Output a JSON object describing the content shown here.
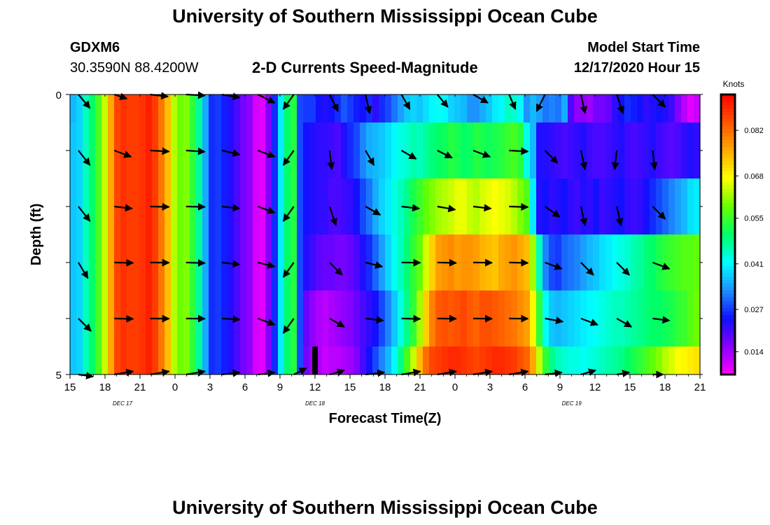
{
  "header": {
    "title": "University of Southern Mississippi Ocean Cube",
    "station": "GDXM6",
    "location": "30.3590N 88.4200W",
    "plot_title": "2-D Currents Speed-Magnitude",
    "model_start_label": "Model Start Time",
    "model_start_value": "12/17/2020 Hour 15"
  },
  "footer": {
    "title": "University of Southern Mississippi Ocean Cube"
  },
  "chart_data": {
    "type": "heatmap",
    "title": "2-D Currents Speed-Magnitude",
    "xlabel": "Forecast Time(Z)",
    "ylabel": "Depth (ft)",
    "x_ticks": [
      "15",
      "18",
      "21",
      "0",
      "3",
      "6",
      "9",
      "12",
      "15",
      "18",
      "21",
      "0",
      "3",
      "6",
      "9",
      "12",
      "15",
      "18",
      "21"
    ],
    "x_hours_range": [
      0,
      54
    ],
    "date_labels": [
      {
        "text": "DEC 17",
        "hour": 4.5
      },
      {
        "text": "DEC 18",
        "hour": 21
      },
      {
        "text": "DEC 19",
        "hour": 43
      }
    ],
    "y_ticks": [
      "0",
      "5"
    ],
    "ylim": [
      0,
      5
    ],
    "colorbar": {
      "title": "Knots",
      "ticks": [
        "0.082",
        "0.068",
        "0.055",
        "0.041",
        "0.027",
        "0.014"
      ],
      "range": [
        0.007,
        0.093
      ],
      "colors": [
        "#ff00ff",
        "#8800ff",
        "#1010ff",
        "#1e90ff",
        "#00ffff",
        "#00ff66",
        "#66ff00",
        "#ffff00",
        "#ffaa00",
        "#ff5500",
        "#ff0000"
      ]
    },
    "layers": [
      [
        0.036,
        0.038,
        0.045,
        0.05,
        0.056,
        0.064,
        0.076,
        0.086,
        0.088,
        0.087,
        0.087,
        0.088,
        0.09,
        0.087,
        0.081,
        0.074,
        0.063,
        0.059,
        0.06,
        0.054,
        0.047,
        0.035,
        0.026,
        0.027,
        0.025,
        0.023,
        0.02,
        0.017,
        0.015,
        0.01,
        0.009,
        0.016,
        0.026,
        0.04,
        0.05,
        0.053,
        0.028,
        0.027,
        0.027,
        0.024,
        0.023,
        0.024,
        0.026,
        0.029,
        0.027,
        0.025,
        0.024,
        0.026,
        0.022,
        0.026,
        0.028,
        0.031,
        0.034,
        0.037,
        0.038,
        0.037,
        0.039,
        0.041,
        0.042,
        0.041,
        0.038,
        0.037,
        0.036,
        0.033,
        0.033,
        0.035,
        0.037,
        0.04,
        0.041,
        0.045,
        0.044,
        0.041,
        0.033,
        0.036,
        0.034,
        0.031,
        0.032,
        0.031,
        0.035,
        0.02,
        0.015,
        0.015,
        0.014,
        0.017,
        0.017,
        0.018,
        0.022,
        0.024,
        0.026,
        0.025,
        0.024,
        0.022,
        0.023,
        0.024,
        0.023,
        0.021,
        0.016,
        0.012,
        0.009,
        0.011
      ],
      [
        0.037,
        0.038,
        0.045,
        0.05,
        0.056,
        0.064,
        0.076,
        0.086,
        0.088,
        0.087,
        0.087,
        0.088,
        0.09,
        0.087,
        0.081,
        0.074,
        0.063,
        0.059,
        0.06,
        0.054,
        0.047,
        0.035,
        0.026,
        0.027,
        0.025,
        0.023,
        0.02,
        0.017,
        0.015,
        0.01,
        0.009,
        0.016,
        0.026,
        0.04,
        0.05,
        0.053,
        0.028,
        0.024,
        0.023,
        0.022,
        0.022,
        0.021,
        0.02,
        0.023,
        0.026,
        0.028,
        0.032,
        0.035,
        0.036,
        0.037,
        0.039,
        0.041,
        0.043,
        0.044,
        0.046,
        0.045,
        0.047,
        0.049,
        0.05,
        0.051,
        0.053,
        0.052,
        0.05,
        0.051,
        0.053,
        0.052,
        0.051,
        0.052,
        0.053,
        0.055,
        0.056,
        0.053,
        0.043,
        0.036,
        0.023,
        0.023,
        0.022,
        0.021,
        0.02,
        0.021,
        0.022,
        0.023,
        0.021,
        0.02,
        0.02,
        0.021,
        0.022,
        0.023,
        0.021,
        0.02,
        0.021,
        0.022,
        0.023,
        0.021,
        0.02,
        0.019,
        0.02,
        0.022,
        0.023,
        0.022
      ],
      [
        0.037,
        0.038,
        0.045,
        0.05,
        0.056,
        0.064,
        0.076,
        0.086,
        0.088,
        0.087,
        0.087,
        0.088,
        0.09,
        0.087,
        0.081,
        0.074,
        0.063,
        0.059,
        0.06,
        0.054,
        0.047,
        0.035,
        0.026,
        0.027,
        0.025,
        0.023,
        0.02,
        0.017,
        0.015,
        0.01,
        0.009,
        0.016,
        0.026,
        0.04,
        0.05,
        0.053,
        0.028,
        0.024,
        0.023,
        0.022,
        0.022,
        0.02,
        0.02,
        0.021,
        0.022,
        0.024,
        0.028,
        0.031,
        0.035,
        0.038,
        0.04,
        0.043,
        0.045,
        0.048,
        0.052,
        0.055,
        0.058,
        0.06,
        0.062,
        0.063,
        0.064,
        0.066,
        0.066,
        0.064,
        0.063,
        0.065,
        0.066,
        0.067,
        0.066,
        0.065,
        0.063,
        0.06,
        0.057,
        0.04,
        0.023,
        0.024,
        0.022,
        0.023,
        0.024,
        0.022,
        0.021,
        0.023,
        0.022,
        0.024,
        0.021,
        0.022,
        0.023,
        0.024,
        0.022,
        0.021,
        0.022,
        0.024,
        0.026,
        0.028,
        0.03,
        0.032,
        0.034,
        0.036,
        0.039,
        0.04
      ],
      [
        0.037,
        0.038,
        0.045,
        0.05,
        0.056,
        0.064,
        0.076,
        0.086,
        0.088,
        0.087,
        0.087,
        0.088,
        0.09,
        0.087,
        0.081,
        0.074,
        0.063,
        0.059,
        0.06,
        0.054,
        0.047,
        0.035,
        0.026,
        0.027,
        0.025,
        0.023,
        0.02,
        0.017,
        0.015,
        0.01,
        0.009,
        0.016,
        0.026,
        0.04,
        0.05,
        0.053,
        0.028,
        0.023,
        0.021,
        0.019,
        0.018,
        0.018,
        0.017,
        0.017,
        0.018,
        0.02,
        0.023,
        0.026,
        0.03,
        0.034,
        0.038,
        0.042,
        0.045,
        0.049,
        0.054,
        0.058,
        0.065,
        0.072,
        0.077,
        0.078,
        0.079,
        0.077,
        0.078,
        0.078,
        0.077,
        0.075,
        0.074,
        0.073,
        0.076,
        0.077,
        0.078,
        0.076,
        0.074,
        0.062,
        0.045,
        0.032,
        0.028,
        0.027,
        0.03,
        0.031,
        0.032,
        0.034,
        0.036,
        0.037,
        0.039,
        0.04,
        0.042,
        0.043,
        0.044,
        0.046,
        0.047,
        0.049,
        0.05,
        0.052,
        0.054,
        0.055,
        0.056,
        0.057,
        0.057,
        0.058
      ],
      [
        0.037,
        0.038,
        0.045,
        0.05,
        0.056,
        0.064,
        0.076,
        0.086,
        0.088,
        0.087,
        0.087,
        0.088,
        0.09,
        0.087,
        0.081,
        0.074,
        0.063,
        0.059,
        0.06,
        0.054,
        0.047,
        0.035,
        0.026,
        0.027,
        0.025,
        0.023,
        0.02,
        0.017,
        0.015,
        0.01,
        0.009,
        0.016,
        0.026,
        0.04,
        0.05,
        0.053,
        0.028,
        0.018,
        0.015,
        0.013,
        0.012,
        0.013,
        0.014,
        0.015,
        0.016,
        0.018,
        0.02,
        0.022,
        0.024,
        0.028,
        0.032,
        0.037,
        0.043,
        0.048,
        0.054,
        0.062,
        0.072,
        0.08,
        0.084,
        0.085,
        0.084,
        0.085,
        0.086,
        0.084,
        0.083,
        0.085,
        0.085,
        0.084,
        0.083,
        0.082,
        0.081,
        0.079,
        0.077,
        0.068,
        0.054,
        0.042,
        0.037,
        0.036,
        0.037,
        0.038,
        0.039,
        0.04,
        0.041,
        0.042,
        0.043,
        0.044,
        0.045,
        0.045,
        0.046,
        0.047,
        0.048,
        0.049,
        0.05,
        0.05,
        0.051,
        0.052,
        0.054,
        0.055,
        0.057,
        0.059
      ],
      [
        0.037,
        0.038,
        0.045,
        0.05,
        0.056,
        0.064,
        0.076,
        0.086,
        0.088,
        0.087,
        0.087,
        0.088,
        0.09,
        0.087,
        0.081,
        0.074,
        0.063,
        0.059,
        0.06,
        0.054,
        0.047,
        0.035,
        0.026,
        0.027,
        0.025,
        0.023,
        0.02,
        0.017,
        0.015,
        0.01,
        0.009,
        0.016,
        0.026,
        0.04,
        0.05,
        0.053,
        0.028,
        0.017,
        0.014,
        0.013,
        0.011,
        0.012,
        0.012,
        0.013,
        0.014,
        0.016,
        0.02,
        0.024,
        0.028,
        0.032,
        0.036,
        0.041,
        0.048,
        0.056,
        0.064,
        0.074,
        0.082,
        0.086,
        0.087,
        0.088,
        0.089,
        0.089,
        0.088,
        0.087,
        0.086,
        0.087,
        0.088,
        0.089,
        0.089,
        0.088,
        0.087,
        0.085,
        0.083,
        0.076,
        0.064,
        0.054,
        0.048,
        0.045,
        0.044,
        0.043,
        0.043,
        0.042,
        0.043,
        0.044,
        0.045,
        0.046,
        0.047,
        0.048,
        0.05,
        0.052,
        0.054,
        0.056,
        0.058,
        0.06,
        0.063,
        0.065,
        0.067,
        0.068,
        0.069,
        0.07
      ]
    ],
    "vectors": [
      [
        [
          0.55,
          0.65
        ],
        [
          0.6,
          0.2
        ],
        [
          0.85,
          0.1
        ],
        [
          0.9,
          0.05
        ],
        [
          0.85,
          0.15
        ],
        [
          0.8,
          0.4
        ],
        [
          -0.5,
          0.7
        ],
        [
          0.4,
          0.8
        ],
        [
          0.2,
          0.9
        ],
        [
          0.4,
          0.7
        ],
        [
          0.5,
          0.6
        ],
        [
          0.7,
          0.4
        ],
        [
          0.3,
          0.7
        ],
        [
          -0.4,
          0.8
        ],
        [
          0.2,
          0.9
        ],
        [
          0.3,
          0.9
        ],
        [
          0.6,
          0.6
        ]
      ],
      [
        [
          0.55,
          0.7
        ],
        [
          0.8,
          0.3
        ],
        [
          0.9,
          0.05
        ],
        [
          0.9,
          0.06
        ],
        [
          0.85,
          0.2
        ],
        [
          0.8,
          0.3
        ],
        [
          -0.5,
          0.7
        ],
        [
          0.1,
          0.9
        ],
        [
          0.4,
          0.7
        ],
        [
          0.7,
          0.4
        ],
        [
          0.7,
          0.35
        ],
        [
          0.8,
          0.3
        ],
        [
          0.9,
          0.05
        ],
        [
          0.6,
          0.6
        ],
        [
          0.2,
          0.9
        ],
        [
          -0.1,
          0.9
        ],
        [
          0.1,
          0.9
        ]
      ],
      [
        [
          0.55,
          0.7
        ],
        [
          0.85,
          0.1
        ],
        [
          0.9,
          0.02
        ],
        [
          0.9,
          0.02
        ],
        [
          0.85,
          0.1
        ],
        [
          0.8,
          0.3
        ],
        [
          -0.5,
          0.7
        ],
        [
          0.3,
          0.9
        ],
        [
          0.7,
          0.4
        ],
        [
          0.85,
          0.1
        ],
        [
          0.85,
          0.15
        ],
        [
          0.85,
          0.1
        ],
        [
          0.9,
          0.03
        ],
        [
          0.7,
          0.5
        ],
        [
          0.2,
          0.9
        ],
        [
          0.2,
          0.9
        ],
        [
          0.6,
          0.6
        ]
      ],
      [
        [
          0.45,
          0.75
        ],
        [
          0.9,
          0.02
        ],
        [
          0.9,
          0.01
        ],
        [
          0.9,
          0.03
        ],
        [
          0.85,
          0.1
        ],
        [
          0.8,
          0.2
        ],
        [
          -0.5,
          0.7
        ],
        [
          0.6,
          0.6
        ],
        [
          0.8,
          0.2
        ],
        [
          0.9,
          0.01
        ],
        [
          0.9,
          0.02
        ],
        [
          0.9,
          0.01
        ],
        [
          0.9,
          0.02
        ],
        [
          0.8,
          0.3
        ],
        [
          0.6,
          0.6
        ],
        [
          0.6,
          0.6
        ],
        [
          0.8,
          0.3
        ]
      ],
      [
        [
          0.6,
          0.6
        ],
        [
          0.9,
          0.02
        ],
        [
          0.9,
          0.01
        ],
        [
          0.9,
          0.01
        ],
        [
          0.85,
          0.05
        ],
        [
          0.8,
          0.3
        ],
        [
          -0.5,
          0.7
        ],
        [
          0.7,
          0.4
        ],
        [
          0.85,
          0.1
        ],
        [
          0.9,
          0.02
        ],
        [
          0.9,
          0.01
        ],
        [
          0.9,
          0.01
        ],
        [
          0.9,
          0.01
        ],
        [
          0.85,
          0.15
        ],
        [
          0.8,
          0.3
        ],
        [
          0.7,
          0.4
        ],
        [
          0.8,
          0.1
        ]
      ],
      [
        [
          0.7,
          0.1
        ],
        [
          0.9,
          -0.15
        ],
        [
          0.9,
          -0.15
        ],
        [
          0.9,
          -0.15
        ],
        [
          0.85,
          -0.1
        ],
        [
          0.8,
          -0.1
        ],
        [
          0.6,
          -0.3
        ],
        [
          0.7,
          -0.2
        ],
        [
          0.9,
          -0.1
        ],
        [
          0.9,
          -0.15
        ],
        [
          0.9,
          -0.15
        ],
        [
          0.9,
          -0.15
        ],
        [
          0.9,
          -0.15
        ],
        [
          0.8,
          -0.1
        ],
        [
          0.7,
          -0.2
        ],
        [
          0.6,
          -0.1
        ],
        [
          0.5,
          0.0
        ]
      ]
    ]
  }
}
